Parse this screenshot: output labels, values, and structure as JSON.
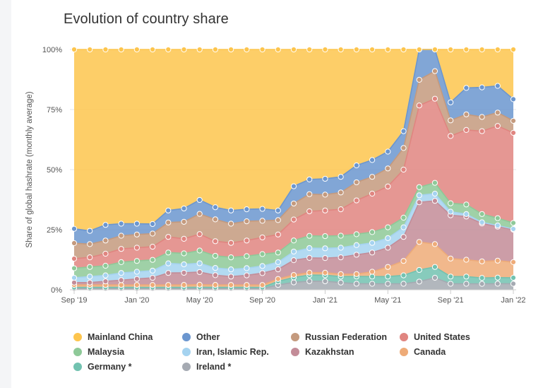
{
  "chart_data": {
    "type": "area",
    "stacked": true,
    "title": "Evolution of country share",
    "ylabel": "Share of global hashrate (monthly average)",
    "xlabel": "",
    "ylim": [
      0,
      100
    ],
    "y_ticks": [
      "0%",
      "25%",
      "50%",
      "75%",
      "100%"
    ],
    "x_ticks": [
      "Sep '19",
      "Jan '20",
      "May '20",
      "Sep '20",
      "Jan '21",
      "May '21",
      "Sep '21",
      "Jan '22"
    ],
    "x": [
      "2019-09",
      "2019-10",
      "2019-11",
      "2019-12",
      "2020-01",
      "2020-02",
      "2020-03",
      "2020-04",
      "2020-05",
      "2020-06",
      "2020-07",
      "2020-08",
      "2020-09",
      "2020-10",
      "2020-11",
      "2020-12",
      "2021-01",
      "2021-02",
      "2021-03",
      "2021-04",
      "2021-05",
      "2021-06",
      "2021-07",
      "2021-08",
      "2021-09",
      "2021-10",
      "2021-11",
      "2021-12",
      "2022-01"
    ],
    "grid": "horizontal",
    "legend_position": "bottom",
    "series": [
      {
        "name": "Ireland *",
        "color": "#a5aab2",
        "values": [
          0.5,
          0.5,
          0.5,
          0.5,
          0.5,
          0.5,
          0.5,
          0.5,
          0.5,
          0.5,
          0.5,
          0.5,
          0.5,
          2.0,
          3.0,
          3.5,
          3.5,
          3.0,
          2.5,
          2.5,
          2.5,
          2.5,
          3.5,
          5.0,
          2.5,
          2.5,
          2.5,
          2.5,
          2.5
        ]
      },
      {
        "name": "Germany *",
        "color": "#72c2b0",
        "values": [
          0.5,
          0.5,
          0.5,
          0.5,
          0.5,
          0.5,
          0.5,
          0.5,
          0.5,
          0.5,
          0.5,
          0.5,
          0.5,
          1.5,
          2.0,
          2.5,
          2.5,
          2.5,
          3.0,
          3.0,
          3.0,
          3.5,
          5.0,
          4.5,
          3.0,
          3.0,
          2.5,
          2.5,
          2.5
        ]
      },
      {
        "name": "Canada",
        "color": "#eeab78",
        "values": [
          1.0,
          1.0,
          1.0,
          1.0,
          1.0,
          1.0,
          1.0,
          1.0,
          1.0,
          1.0,
          1.0,
          1.0,
          1.0,
          1.0,
          1.0,
          1.0,
          1.0,
          1.0,
          1.0,
          2.0,
          4.0,
          6.0,
          12.0,
          9.5,
          7.5,
          7.0,
          7.0,
          7.0,
          6.5
        ]
      },
      {
        "name": "Kazakhstan",
        "color": "#c38c98",
        "values": [
          1.0,
          1.0,
          1.5,
          2.0,
          2.5,
          3.0,
          5.0,
          5.0,
          5.0,
          4.0,
          3.5,
          4.0,
          5.0,
          4.0,
          6.0,
          6.0,
          6.0,
          7.0,
          8.0,
          8.0,
          8.0,
          10.0,
          17.0,
          18.0,
          18.0,
          18.0,
          16.0,
          14.0,
          13.5
        ]
      },
      {
        "name": "Iran, Islamic Rep.",
        "color": "#a5d3f0",
        "values": [
          2.0,
          2.5,
          2.5,
          3.0,
          3.0,
          3.0,
          4.0,
          3.5,
          3.5,
          3.0,
          3.0,
          3.0,
          3.0,
          3.0,
          3.5,
          4.0,
          4.0,
          4.0,
          4.0,
          4.0,
          4.0,
          4.0,
          3.0,
          3.0,
          1.5,
          1.0,
          0.5,
          0.5,
          0.3
        ]
      },
      {
        "name": "Malaysia",
        "color": "#8ec998",
        "values": [
          4.0,
          4.0,
          4.0,
          4.5,
          4.5,
          4.5,
          4.5,
          4.5,
          5.0,
          5.0,
          5.0,
          5.0,
          5.0,
          4.0,
          4.5,
          5.0,
          5.0,
          5.0,
          4.5,
          4.5,
          4.5,
          4.0,
          3.5,
          4.5,
          3.5,
          4.0,
          3.5,
          3.0,
          2.5
        ]
      },
      {
        "name": "United States",
        "color": "#e08580",
        "values": [
          4.0,
          4.0,
          5.0,
          5.5,
          5.5,
          5.5,
          6.5,
          6.0,
          6.5,
          6.0,
          6.0,
          6.5,
          7.0,
          7.5,
          8.5,
          10.0,
          10.5,
          11.0,
          14.0,
          16.0,
          17.0,
          20.0,
          35.0,
          35.0,
          28.0,
          31.0,
          35.0,
          38.0,
          37.5
        ]
      },
      {
        "name": "Russian Federation",
        "color": "#c49a7e",
        "values": [
          6.5,
          5.5,
          5.5,
          5.5,
          5.5,
          5.5,
          6.0,
          7.0,
          8.0,
          9.0,
          8.0,
          8.0,
          7.0,
          6.0,
          6.5,
          7.0,
          6.5,
          7.0,
          7.5,
          7.0,
          7.5,
          9.0,
          11.0,
          11.5,
          6.5,
          6.5,
          6.0,
          5.5,
          5.0
        ]
      },
      {
        "name": "Other",
        "color": "#6b96cf",
        "values": [
          6.0,
          5.5,
          6.5,
          5.0,
          4.5,
          4.0,
          5.0,
          5.5,
          5.5,
          5.0,
          5.5,
          5.0,
          5.0,
          4.0,
          7.0,
          6.0,
          6.5,
          6.5,
          7.0,
          7.0,
          7.0,
          7.0,
          13.0,
          9.0,
          7.5,
          11.0,
          12.5,
          11.0,
          9.0
        ]
      },
      {
        "name": "Mainland China",
        "color": "#fdc54e",
        "values": [
          75.0,
          75.5,
          73.0,
          72.5,
          72.5,
          73.0,
          67.0,
          65.5,
          59.5,
          65.0,
          67.0,
          66.5,
          67.0,
          67.0,
          55.5,
          53.0,
          53.0,
          53.0,
          48.0,
          46.0,
          42.5,
          34.0,
          0.0,
          0.0,
          22.0,
          16.0,
          16.0,
          15.0,
          20.7
        ]
      }
    ]
  },
  "legend": {
    "items": [
      {
        "label": "Mainland China",
        "color": "#fdc54e"
      },
      {
        "label": "Other",
        "color": "#6b96cf"
      },
      {
        "label": "Russian Federation",
        "color": "#c49a7e"
      },
      {
        "label": "United States",
        "color": "#e08580"
      },
      {
        "label": "Malaysia",
        "color": "#8ec998"
      },
      {
        "label": "Iran, Islamic Rep.",
        "color": "#a5d3f0"
      },
      {
        "label": "Kazakhstan",
        "color": "#c38c98"
      },
      {
        "label": "Canada",
        "color": "#eeab78"
      },
      {
        "label": "Germany *",
        "color": "#72c2b0"
      },
      {
        "label": "Ireland *",
        "color": "#a5aab2"
      }
    ]
  }
}
